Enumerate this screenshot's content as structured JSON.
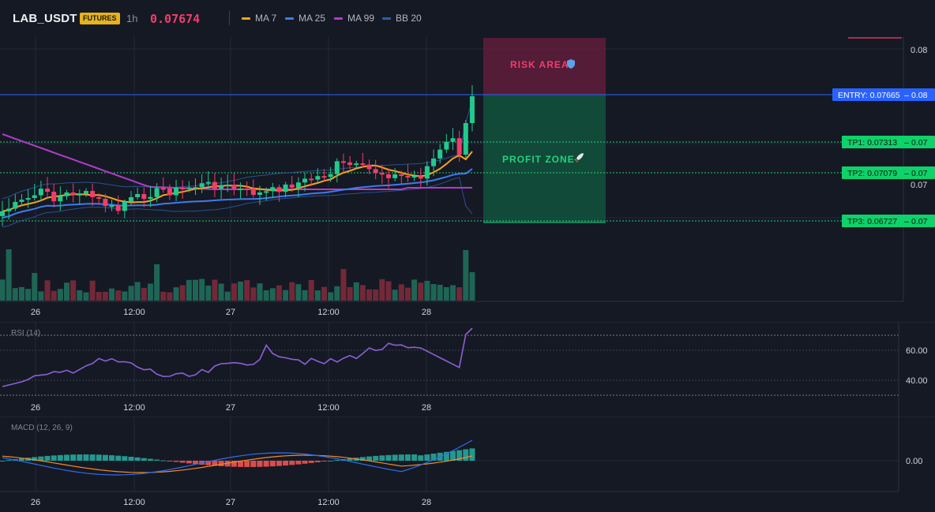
{
  "header": {
    "symbol": "LAB_USDT",
    "market_badge": "FUTURES",
    "timeframe": "1h",
    "last_price": "0.07674",
    "indicators": [
      {
        "name": "MA 7",
        "color": "#f7a21b"
      },
      {
        "name": "MA 25",
        "color": "#3d7cf0"
      },
      {
        "name": "MA 99",
        "color": "#b13cc7"
      },
      {
        "name": "BB 20",
        "color": "#2f5fa8"
      }
    ]
  },
  "zones": {
    "risk_label": "RISK AREA",
    "risk_icon": "shield-icon",
    "profit_label": "PROFIT ZONE",
    "profit_icon": "rocket-icon"
  },
  "levels": {
    "entry": {
      "label": "ENTRY: 0.07665",
      "axis": "0.08",
      "color": "#2962ff"
    },
    "tp1": {
      "label": "TP1: 0.07313",
      "axis": "0.07",
      "color": "#0ed26a"
    },
    "tp2": {
      "label": "TP2: 0.07079",
      "axis": "0.07",
      "color": "#0ed26a"
    },
    "tp3": {
      "label": "TP3: 0.06727",
      "axis": "0.07",
      "color": "#0ed26a"
    }
  },
  "price_axis": {
    "top": "0.08",
    "mid": "0.07"
  },
  "time_axis": [
    "26",
    "12:00",
    "27",
    "12:00",
    "28"
  ],
  "rsi": {
    "title": "RSI (14)",
    "levels": [
      "60.00",
      "40.00"
    ]
  },
  "macd": {
    "title": "MACD (12, 26, 9)",
    "level": "0.00"
  },
  "colors": {
    "up": "#22c98d",
    "down": "#f23d6b",
    "background": "#151924"
  }
}
